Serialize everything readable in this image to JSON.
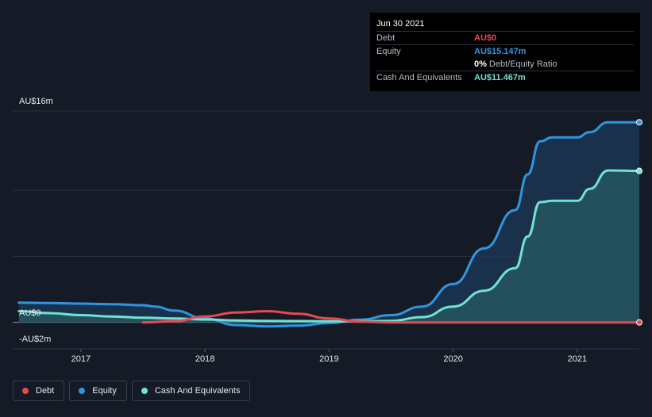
{
  "tooltip": {
    "date": "Jun 30 2021",
    "rows": [
      {
        "label": "Debt",
        "value": "AU$0",
        "color": "#e64a4f"
      },
      {
        "label": "Equity",
        "value": "AU$15.147m",
        "color": "#2f95e0"
      },
      {
        "label": "",
        "value": "0%",
        "suffix": "Debt/Equity Ratio",
        "color": "#ffffff"
      },
      {
        "label": "Cash And Equivalents",
        "value": "AU$11.467m",
        "color": "#6ee2d3"
      }
    ]
  },
  "axis": {
    "y_top_label": "AU$16m",
    "y_zero_label": "AU$0",
    "y_bottom_label": "-AU$2m"
  },
  "legend": [
    {
      "label": "Debt",
      "color": "#e64a4f"
    },
    {
      "label": "Equity",
      "color": "#2f95e0"
    },
    {
      "label": "Cash And Equivalents",
      "color": "#6ee2d3"
    }
  ],
  "chart_data": {
    "type": "area",
    "ylim": [
      -2,
      16
    ],
    "xlim": [
      2016.45,
      2021.5
    ],
    "grid": true,
    "legend_position": "bottom-left",
    "x_ticks": [
      "2017",
      "2018",
      "2019",
      "2020",
      "2021"
    ],
    "series": [
      {
        "name": "Debt",
        "color": "#e64a4f",
        "area": false,
        "points": [
          [
            2017.5,
            0.0
          ],
          [
            2017.75,
            0.08
          ],
          [
            2018.0,
            0.45
          ],
          [
            2018.25,
            0.75
          ],
          [
            2018.5,
            0.85
          ],
          [
            2018.75,
            0.65
          ],
          [
            2019.0,
            0.3
          ],
          [
            2019.25,
            0.05
          ],
          [
            2019.5,
            0.0
          ],
          [
            2020.0,
            0.0
          ],
          [
            2020.5,
            0.0
          ],
          [
            2021.0,
            0.0
          ],
          [
            2021.5,
            0.0
          ]
        ]
      },
      {
        "name": "Equity",
        "color": "#2f95e0",
        "area": true,
        "points": [
          [
            2016.5,
            1.5
          ],
          [
            2016.75,
            1.47
          ],
          [
            2017.0,
            1.42
          ],
          [
            2017.25,
            1.38
          ],
          [
            2017.5,
            1.3
          ],
          [
            2017.6,
            1.2
          ],
          [
            2017.75,
            0.9
          ],
          [
            2018.0,
            0.3
          ],
          [
            2018.25,
            -0.2
          ],
          [
            2018.5,
            -0.3
          ],
          [
            2018.75,
            -0.25
          ],
          [
            2019.0,
            -0.05
          ],
          [
            2019.25,
            0.2
          ],
          [
            2019.5,
            0.55
          ],
          [
            2019.75,
            1.2
          ],
          [
            2020.0,
            2.9
          ],
          [
            2020.25,
            5.6
          ],
          [
            2020.5,
            8.5
          ],
          [
            2020.6,
            11.2
          ],
          [
            2020.7,
            13.7
          ],
          [
            2020.8,
            14.0
          ],
          [
            2021.0,
            14.0
          ],
          [
            2021.1,
            14.4
          ],
          [
            2021.25,
            15.15
          ],
          [
            2021.5,
            15.147
          ]
        ]
      },
      {
        "name": "Cash And Equivalents",
        "color": "#6ee2d3",
        "area": true,
        "points": [
          [
            2016.5,
            0.85
          ],
          [
            2016.75,
            0.7
          ],
          [
            2017.0,
            0.55
          ],
          [
            2017.25,
            0.45
          ],
          [
            2017.5,
            0.35
          ],
          [
            2017.75,
            0.3
          ],
          [
            2018.0,
            0.22
          ],
          [
            2018.25,
            0.15
          ],
          [
            2018.5,
            0.12
          ],
          [
            2018.75,
            0.1
          ],
          [
            2019.0,
            0.08
          ],
          [
            2019.25,
            0.08
          ],
          [
            2019.5,
            0.12
          ],
          [
            2019.75,
            0.4
          ],
          [
            2020.0,
            1.2
          ],
          [
            2020.25,
            2.4
          ],
          [
            2020.5,
            4.1
          ],
          [
            2020.6,
            6.5
          ],
          [
            2020.7,
            9.1
          ],
          [
            2020.8,
            9.2
          ],
          [
            2021.0,
            9.2
          ],
          [
            2021.1,
            10.1
          ],
          [
            2021.25,
            11.5
          ],
          [
            2021.5,
            11.467
          ]
        ]
      }
    ]
  }
}
